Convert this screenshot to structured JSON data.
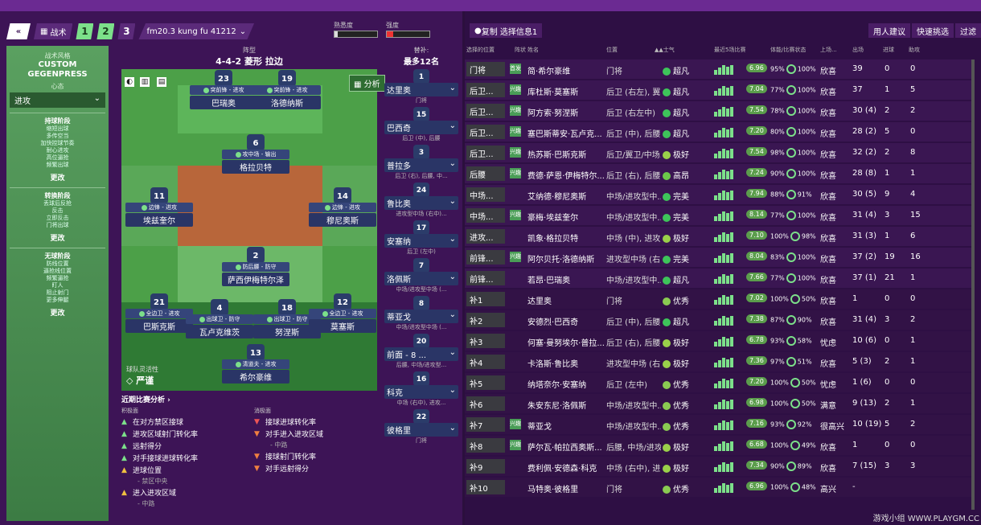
{
  "nav": {
    "back": "«",
    "tactic": "战术",
    "slots": [
      "1",
      "2",
      "3"
    ],
    "tactic_name": "fm20.3 kung fu 41212"
  },
  "meters": {
    "familiarity": "熟悉度",
    "intensity": "强度"
  },
  "left_panel": {
    "style_label": "战术风格",
    "style_value": "CUSTOM GEGENPRESS",
    "mentality_label": "心态",
    "mentality_value": "进攻",
    "phases": [
      {
        "title": "持球阶段",
        "items": [
          "缩短出球",
          "多传空当",
          "加快控球节奏",
          "耐心进攻",
          "高位逼抢",
          "频繁出球"
        ],
        "change": "更改"
      },
      {
        "title": "转换阶段",
        "items": [
          "丢球后反抢",
          "反击",
          "立即反击",
          "门将出球"
        ],
        "change": "更改"
      },
      {
        "title": "无球阶段",
        "items": [
          "防线位置",
          "逼抢线位置",
          "频繁逼抢",
          "盯人",
          "阻止射门",
          "更多伸腿"
        ],
        "change": "更改"
      }
    ],
    "flex_label": "球队灵活性",
    "flex_value": "严谨"
  },
  "formation": {
    "label": "阵型",
    "value": "4-4-2 菱形 拉边",
    "analyse": "分析"
  },
  "players": [
    {
      "num": "23",
      "role": "突前锋 - 进攻",
      "name": "巴瑞奥"
    },
    {
      "num": "19",
      "role": "突前锋 - 进攻",
      "name": "洛德纳斯"
    },
    {
      "num": "6",
      "role": "攻中场 - 输出",
      "name": "格拉贝特"
    },
    {
      "num": "11",
      "role": "边锋 - 进攻",
      "name": "埃兹奎尔"
    },
    {
      "num": "14",
      "role": "边锋 - 进攻",
      "name": "穆尼奥斯"
    },
    {
      "num": "2",
      "role": "防后腰 - 防守",
      "name": "萨西伊梅特尔泽"
    },
    {
      "num": "21",
      "role": "全边卫 - 进攻",
      "name": "巴斯克斯"
    },
    {
      "num": "4",
      "role": "出球卫 - 防守",
      "name": "瓦卢克维茨"
    },
    {
      "num": "18",
      "role": "出球卫 - 防守",
      "name": "努涅斯"
    },
    {
      "num": "12",
      "role": "全边卫 - 进攻",
      "name": "莫塞斯"
    },
    {
      "num": "13",
      "role": "清道夫 - 进攻",
      "name": "希尔豪维"
    }
  ],
  "analysis": {
    "title": "近期比赛分析 ›",
    "pos_head": "积极面",
    "neg_head": "消极面",
    "positive": [
      "在对方禁区接球",
      "进攻区域射门转化率",
      "远射得分",
      "对手接球进球转化率",
      "进球位置",
      "进入进攻区域"
    ],
    "positive_sub": [
      "",
      "",
      "",
      "",
      "- 禁区中央",
      "- 中路"
    ],
    "negative": [
      "接球进球转化率",
      "对手进入进攻区域",
      "接球射门转化率",
      "对手远射得分"
    ],
    "negative_sub": [
      "",
      "- 中路",
      "",
      ""
    ]
  },
  "subs_panel": {
    "label": "替补:",
    "max": "最多12名",
    "players": [
      {
        "num": "1",
        "name": "达里奥",
        "pos": "门将"
      },
      {
        "num": "15",
        "name": "巴西奇",
        "pos": "后卫 (中), 后腰"
      },
      {
        "num": "3",
        "name": "普拉多",
        "pos": "后卫 (右), 后腰, 中..."
      },
      {
        "num": "24",
        "name": "鲁比奥",
        "pos": "进攻型中场 (右中)..."
      },
      {
        "num": "17",
        "name": "安塞纳",
        "pos": "后卫 (左中)"
      },
      {
        "num": "7",
        "name": "洛佩斯",
        "pos": "中场/进攻型中场 (..."
      },
      {
        "num": "8",
        "name": "蒂亚戈",
        "pos": "中场/进攻型中场 (..."
      },
      {
        "num": "20",
        "name": "前面 - 8 ...",
        "pos": "后腰, 中场/进攻型..."
      },
      {
        "num": "16",
        "name": "科克",
        "pos": "中场 (右中), 进攻..."
      },
      {
        "num": "22",
        "name": "彼格里",
        "pos": "门将"
      }
    ]
  },
  "right": {
    "filter": "复制 选择信息1",
    "buttons": [
      "用人建议",
      "快速挑选",
      "过滤"
    ],
    "columns": [
      "选择的位置",
      "阵状",
      "姓名",
      "位置",
      "▲▲士气",
      "最近5场比赛",
      "体能/比赛状态",
      "上场...",
      "出场",
      "进球",
      "助攻"
    ],
    "rows": [
      {
        "slot": "门将",
        "tag": "首发",
        "name": "简·希尔豪维",
        "pos": "门将",
        "morale": "超凡",
        "rating": "6.96",
        "fit": "95%",
        "cond": "100%",
        "happy": "欣喜",
        "apps": "39",
        "goals": "0",
        "assists": "0"
      },
      {
        "slot": "后卫...",
        "tag": "兴趣",
        "name": "库杜斯·莫塞斯",
        "pos": "后卫 (右左), 翼...",
        "morale": "超凡",
        "rating": "7.04",
        "fit": "77%",
        "cond": "100%",
        "happy": "欣喜",
        "apps": "37",
        "goals": "1",
        "assists": "5"
      },
      {
        "slot": "后卫...",
        "tag": "兴趣",
        "name": "阿方索·努涅斯",
        "pos": "后卫 (右左中)",
        "morale": "超凡",
        "rating": "7.54",
        "fit": "78%",
        "cond": "100%",
        "happy": "欣喜",
        "apps": "30 (4)",
        "goals": "2",
        "assists": "2"
      },
      {
        "slot": "后卫...",
        "tag": "兴趣",
        "name": "塞巴斯蒂安·瓦卢克...",
        "pos": "后卫 (中), 后腰",
        "morale": "超凡",
        "rating": "7.20",
        "fit": "80%",
        "cond": "100%",
        "happy": "欣喜",
        "apps": "28 (2)",
        "goals": "5",
        "assists": "0"
      },
      {
        "slot": "后卫...",
        "tag": "兴趣",
        "name": "热苏斯·巴斯克斯",
        "pos": "后卫/翼卫/中场...",
        "morale": "极好",
        "rating": "7.54",
        "fit": "98%",
        "cond": "100%",
        "happy": "欣喜",
        "apps": "32 (2)",
        "goals": "2",
        "assists": "8"
      },
      {
        "slot": "后腰",
        "tag": "兴趣",
        "name": "费德·萨恩·伊梅特尔...",
        "pos": "后卫 (右), 后腰...",
        "morale": "高昂",
        "rating": "7.24",
        "fit": "90%",
        "cond": "100%",
        "happy": "欣喜",
        "apps": "28 (8)",
        "goals": "1",
        "assists": "1"
      },
      {
        "slot": "中场...",
        "tag": "",
        "name": "艾纳德·穆尼奥斯",
        "pos": "中场/进攻型中...",
        "morale": "完美",
        "rating": "7.94",
        "fit": "88%",
        "cond": "91%",
        "happy": "欣喜",
        "apps": "30 (5)",
        "goals": "9",
        "assists": "4"
      },
      {
        "slot": "中场...",
        "tag": "兴趣",
        "name": "豪梅·埃兹奎尔",
        "pos": "中场/进攻型中...",
        "morale": "完美",
        "rating": "8.14",
        "fit": "77%",
        "cond": "100%",
        "happy": "欣喜",
        "apps": "31 (4)",
        "goals": "3",
        "assists": "15"
      },
      {
        "slot": "进攻...",
        "tag": "",
        "name": "凯象·格拉贝特",
        "pos": "中场 (中), 进攻...",
        "morale": "极好",
        "rating": "7.10",
        "fit": "100%",
        "cond": "98%",
        "happy": "欣喜",
        "apps": "31 (3)",
        "goals": "1",
        "assists": "6"
      },
      {
        "slot": "前锋...",
        "tag": "兴趣",
        "name": "阿尔贝托·洛德纳斯",
        "pos": "进攻型中场 (右...",
        "morale": "完美",
        "rating": "8.04",
        "fit": "83%",
        "cond": "100%",
        "happy": "欣喜",
        "apps": "37 (2)",
        "goals": "19",
        "assists": "16"
      },
      {
        "slot": "前锋...",
        "tag": "",
        "name": "若昂·巴瑞奥",
        "pos": "中场/进攻型中...",
        "morale": "超凡",
        "rating": "7.66",
        "fit": "77%",
        "cond": "100%",
        "happy": "欣喜",
        "apps": "37 (1)",
        "goals": "21",
        "assists": "1"
      },
      {
        "slot": "补1",
        "tag": "",
        "name": "达里奥",
        "pos": "门将",
        "morale": "优秀",
        "rating": "7.02",
        "fit": "100%",
        "cond": "50%",
        "happy": "欣喜",
        "apps": "1",
        "goals": "0",
        "assists": "0"
      },
      {
        "slot": "补2",
        "tag": "",
        "name": "安德烈·巴西奇",
        "pos": "后卫 (中), 后腰",
        "morale": "超凡",
        "rating": "7.38",
        "fit": "87%",
        "cond": "90%",
        "happy": "欣喜",
        "apps": "31 (4)",
        "goals": "3",
        "assists": "2"
      },
      {
        "slot": "补3",
        "tag": "",
        "name": "何塞·曼努埃尔·普拉...",
        "pos": "后卫 (右), 后腰...",
        "morale": "极好",
        "rating": "6.78",
        "fit": "93%",
        "cond": "58%",
        "happy": "忧虑",
        "apps": "10 (6)",
        "goals": "0",
        "assists": "1"
      },
      {
        "slot": "补4",
        "tag": "",
        "name": "卡洛斯·鲁比奥",
        "pos": "进攻型中场 (右...",
        "morale": "极好",
        "rating": "7.36",
        "fit": "97%",
        "cond": "51%",
        "happy": "欣喜",
        "apps": "5 (3)",
        "goals": "2",
        "assists": "1"
      },
      {
        "slot": "补5",
        "tag": "",
        "name": "纳塔奈尔·安塞纳",
        "pos": "后卫 (左中)",
        "morale": "优秀",
        "rating": "7.20",
        "fit": "100%",
        "cond": "50%",
        "happy": "忧虑",
        "apps": "1 (6)",
        "goals": "0",
        "assists": "0"
      },
      {
        "slot": "补6",
        "tag": "",
        "name": "朱安东尼·洛佩斯",
        "pos": "中场/进攻型中...",
        "morale": "优秀",
        "rating": "6.98",
        "fit": "100%",
        "cond": "50%",
        "happy": "满意",
        "apps": "9 (13)",
        "goals": "2",
        "assists": "1"
      },
      {
        "slot": "补7",
        "tag": "兴趣",
        "name": "蒂亚戈",
        "pos": "中场/进攻型中...",
        "morale": "优秀",
        "rating": "7.16",
        "fit": "93%",
        "cond": "92%",
        "happy": "很高兴",
        "apps": "10 (19)",
        "goals": "5",
        "assists": "2"
      },
      {
        "slot": "补8",
        "tag": "兴趣",
        "name": "萨尔瓦·帕拉西奥斯...",
        "pos": "后腰, 中场/进攻...",
        "morale": "极好",
        "rating": "6.68",
        "fit": "100%",
        "cond": "49%",
        "happy": "欣喜",
        "apps": "1",
        "goals": "0",
        "assists": "0"
      },
      {
        "slot": "补9",
        "tag": "",
        "name": "费利佩·安德森·科克",
        "pos": "中场 (右中), 进...",
        "morale": "极好",
        "rating": "7.34",
        "fit": "90%",
        "cond": "89%",
        "happy": "欣喜",
        "apps": "7 (15)",
        "goals": "3",
        "assists": "3"
      },
      {
        "slot": "补10",
        "tag": "",
        "name": "马特奥·彼格里",
        "pos": "门将",
        "morale": "优秀",
        "rating": "6.96",
        "fit": "100%",
        "cond": "48%",
        "happy": "高兴",
        "apps": "-",
        "goals": "",
        "assists": ""
      }
    ]
  },
  "watermark": "游戏小组 WWW.PLAYGM.CC",
  "colors": {
    "accent": "#7ce08a",
    "panel": "#3d1456"
  }
}
